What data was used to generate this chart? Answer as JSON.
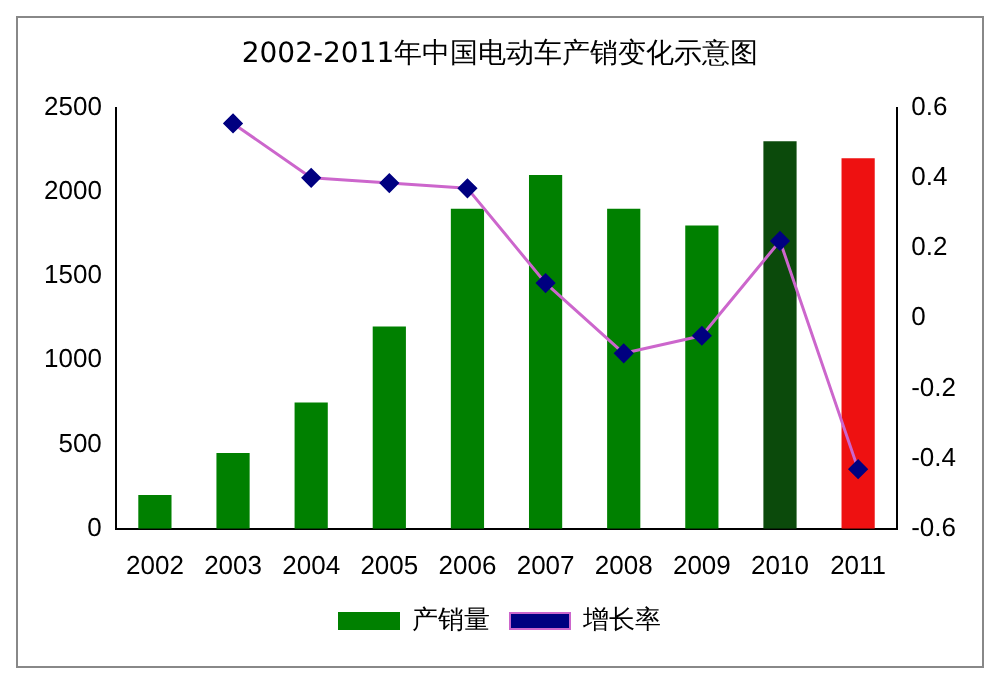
{
  "chart_data": {
    "type": "bar",
    "title": "2002-2011年中国电动车产销变化示意图",
    "categories": [
      "2002",
      "2003",
      "2004",
      "2005",
      "2006",
      "2007",
      "2008",
      "2009",
      "2010",
      "2011"
    ],
    "series": [
      {
        "name": "产销量",
        "color": "#008000",
        "colors": [
          "#008000",
          "#008000",
          "#008000",
          "#008000",
          "#008000",
          "#008000",
          "#008000",
          "#008000",
          "#0b4a0b",
          "#ee1111"
        ],
        "values": [
          200,
          450,
          750,
          1200,
          1900,
          2100,
          1900,
          1800,
          2300,
          2200
        ]
      },
      {
        "name": "增长率",
        "type": "line",
        "axis": "y2",
        "color": "#cc66cc",
        "values": [
          null,
          0.555,
          0.4,
          0.385,
          0.37,
          0.1,
          -0.1,
          -0.05,
          0.22,
          -0.43
        ]
      }
    ],
    "ylim": [
      0,
      2500
    ],
    "yticks": [
      0,
      500,
      1000,
      1500,
      2000,
      2500
    ],
    "y2lim": [
      -0.6,
      0.6
    ],
    "y2ticks": [
      {
        "value": -0.6,
        "label": "-0.6"
      },
      {
        "value": -0.4,
        "label": "-0.4"
      },
      {
        "value": -0.2,
        "label": "-0.2"
      },
      {
        "value": 0,
        "label": "0"
      },
      {
        "value": 0.2,
        "label": "0.2"
      },
      {
        "value": 0.4,
        "label": "0.4"
      },
      {
        "value": 0.6,
        "label": "0.6"
      }
    ],
    "grid": false,
    "legend": "bottom",
    "marker": "diamond",
    "line_style": "solid"
  }
}
